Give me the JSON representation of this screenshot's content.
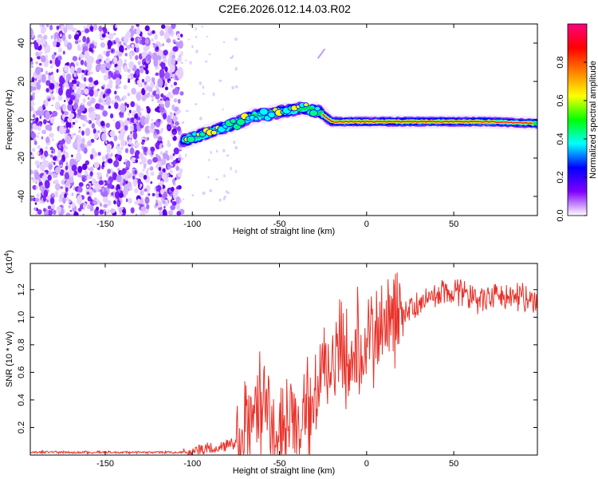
{
  "figure_title": "C2E6.2026.012.14.03.R02",
  "chart_data": [
    {
      "type": "heatmap",
      "name": "spectrogram",
      "xlabel": "Height of straight line (km)",
      "ylabel": "Frequency (Hz)",
      "xlim": [
        -193,
        98
      ],
      "ylim": [
        -50,
        50
      ],
      "xticks": [
        -150,
        -100,
        -50,
        0,
        50
      ],
      "xtick_labels": [
        "-150",
        "-100",
        "-50",
        "0",
        "50"
      ],
      "yticks": [
        -40,
        -20,
        0,
        20,
        40
      ],
      "ytick_labels": [
        "-40",
        "-20",
        "0",
        "20",
        "40"
      ],
      "noise_region": {
        "x_range": [
          -193,
          -106
        ],
        "y_range": [
          -50,
          50
        ]
      },
      "signal_ridge": [
        {
          "x": -105,
          "y": -11
        },
        {
          "x": -95,
          "y": -8
        },
        {
          "x": -85,
          "y": -5
        },
        {
          "x": -75,
          "y": -2
        },
        {
          "x": -65,
          "y": 2
        },
        {
          "x": -55,
          "y": 3
        },
        {
          "x": -45,
          "y": 5
        },
        {
          "x": -35,
          "y": 6
        },
        {
          "x": -27,
          "y": 4
        },
        {
          "x": -20,
          "y": -1
        },
        {
          "x": -10,
          "y": -1
        },
        {
          "x": 0,
          "y": -1
        },
        {
          "x": 15,
          "y": -1
        },
        {
          "x": 30,
          "y": -1
        },
        {
          "x": 50,
          "y": -1
        },
        {
          "x": 70,
          "y": -1
        },
        {
          "x": 98,
          "y": -2
        }
      ],
      "colorbar": {
        "label": "Normalized spectral amplitude",
        "range": [
          0,
          1
        ],
        "ticks": [
          "0.0",
          "0.2",
          "0.4",
          "0.6",
          "0.8"
        ],
        "colors": [
          "#ffffff",
          "#8000ff",
          "#0000ff",
          "#00ffff",
          "#00ff00",
          "#ffff00",
          "#ff8000",
          "#ff0000",
          "#ff0080"
        ]
      }
    },
    {
      "type": "line",
      "name": "snr",
      "xlabel": "Height of straight line (km)",
      "ylabel": "SNR (10 * v/v)",
      "y_multiplier": "(x10",
      "y_multiplier_exp": "4",
      "y_multiplier_close": ")",
      "xlim": [
        -193,
        98
      ],
      "ylim": [
        0,
        1.39
      ],
      "xticks": [
        -150,
        -100,
        -50,
        0,
        50
      ],
      "xtick_labels": [
        "-150",
        "-100",
        "-50",
        "0",
        "50"
      ],
      "yticks": [
        0.2,
        0.4,
        0.6,
        0.8,
        1.0,
        1.2
      ],
      "ytick_labels": [
        "0.2",
        "0.4",
        "0.6",
        "0.8",
        "1.0",
        "1.2"
      ],
      "line_color": "#e8322a",
      "series": [
        {
          "name": "SNR",
          "x": [
            -193,
            -150,
            -110,
            -100,
            -90,
            -80,
            -72,
            -66,
            -62,
            -58,
            -55,
            -50,
            -45,
            -40,
            -35,
            -30,
            -27,
            -25,
            -22,
            -20,
            -17,
            -14,
            -10,
            -5,
            0,
            5,
            10,
            15,
            20,
            25,
            30,
            35,
            40,
            45,
            50,
            55,
            60,
            65,
            70,
            75,
            80,
            85,
            90,
            93,
            95,
            98
          ],
          "values": [
            0.02,
            0.02,
            0.02,
            0.02,
            0.05,
            0.07,
            0.1,
            0.2,
            0.3,
            0.45,
            0.22,
            0.15,
            0.12,
            0.2,
            0.3,
            0.4,
            0.55,
            0.85,
            0.55,
            0.62,
            0.72,
            0.75,
            0.7,
            0.75,
            0.8,
            0.88,
            0.92,
            0.95,
            0.98,
            1.05,
            1.1,
            1.12,
            1.15,
            1.18,
            1.2,
            1.18,
            1.15,
            1.12,
            1.16,
            1.18,
            1.17,
            1.15,
            1.1,
            1.15,
            1.12,
            1.13
          ]
        }
      ]
    }
  ]
}
